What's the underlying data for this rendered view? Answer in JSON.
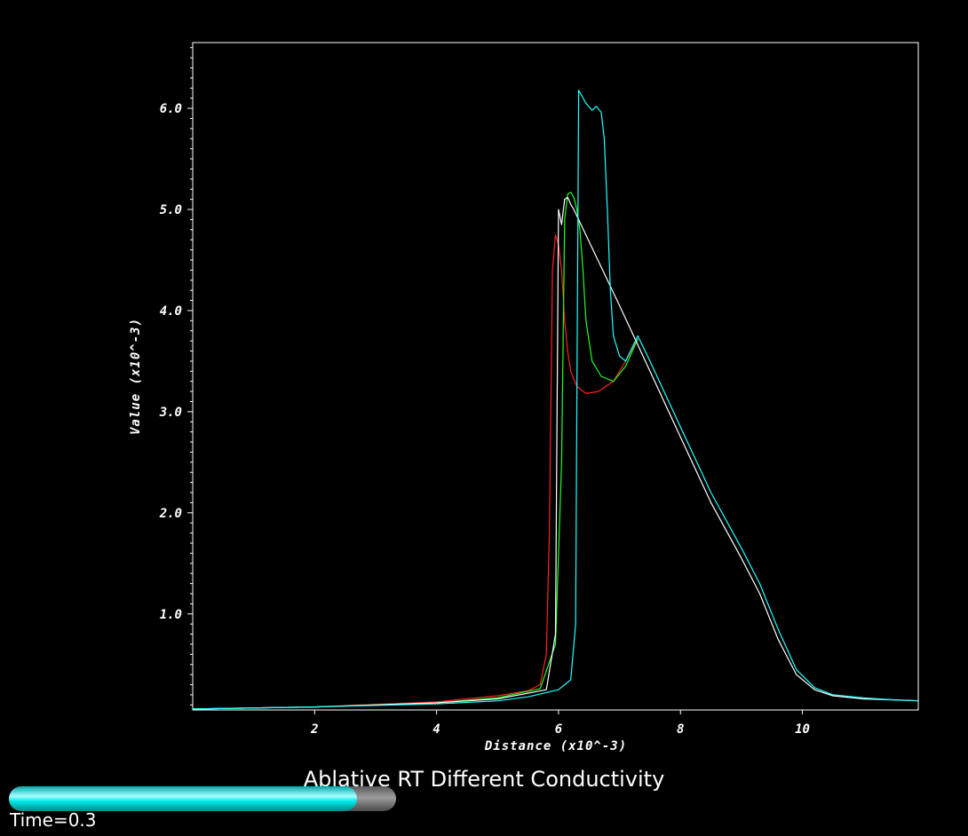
{
  "chart_data": {
    "type": "line",
    "title": "Ablative RT Different Conductivity",
    "xlabel": "Distance (x10^-3)",
    "ylabel": "Value (x10^-3)",
    "xlim": [
      0.0,
      11.9
    ],
    "ylim": [
      0.05,
      6.65
    ],
    "xticks": [
      2,
      4,
      6,
      8,
      10
    ],
    "xtick_labels": [
      "2",
      "4",
      "6",
      "8",
      "10"
    ],
    "yticks": [
      1.0,
      2.0,
      3.0,
      4.0,
      5.0,
      6.0
    ],
    "ytick_labels": [
      "1.0",
      "2.0",
      "3.0",
      "4.0",
      "5.0",
      "6.0"
    ],
    "grid": false,
    "series": [
      {
        "color": "#ff2020",
        "x": [
          0.0,
          2.0,
          4.0,
          5.0,
          5.5,
          5.7,
          5.8,
          5.85,
          5.9,
          5.95,
          6.0,
          6.05,
          6.1,
          6.15,
          6.2,
          6.3,
          6.45,
          6.65,
          6.9,
          7.1,
          7.3
        ],
        "y": [
          0.06,
          0.08,
          0.13,
          0.19,
          0.24,
          0.3,
          0.6,
          1.8,
          4.4,
          4.75,
          4.65,
          4.4,
          3.9,
          3.6,
          3.4,
          3.25,
          3.18,
          3.2,
          3.3,
          3.5,
          3.72
        ]
      },
      {
        "color": "#20ff20",
        "x": [
          0.0,
          2.0,
          4.0,
          5.0,
          5.7,
          5.95,
          6.05,
          6.1,
          6.15,
          6.2,
          6.25,
          6.3,
          6.35,
          6.4,
          6.45,
          6.55,
          6.7,
          6.9,
          7.1,
          7.3
        ],
        "y": [
          0.06,
          0.08,
          0.12,
          0.17,
          0.26,
          0.7,
          2.5,
          4.9,
          5.15,
          5.17,
          5.12,
          5.0,
          4.8,
          4.4,
          3.9,
          3.5,
          3.35,
          3.3,
          3.45,
          3.72
        ]
      },
      {
        "color": "#ffffff",
        "x": [
          0.0,
          2.0,
          4.0,
          5.0,
          5.8,
          5.95,
          6.0,
          6.05,
          6.1,
          6.15,
          6.2,
          6.25,
          7.0,
          7.5,
          8.0,
          8.5,
          9.0,
          9.3,
          9.6,
          9.9,
          10.2,
          10.5,
          11.0,
          11.5,
          11.9
        ],
        "y": [
          0.06,
          0.08,
          0.12,
          0.16,
          0.25,
          0.8,
          5.0,
          4.85,
          5.1,
          5.12,
          5.05,
          5.0,
          4.05,
          3.4,
          2.75,
          2.1,
          1.55,
          1.2,
          0.75,
          0.4,
          0.25,
          0.19,
          0.16,
          0.15,
          0.14
        ]
      },
      {
        "color": "#20ffff",
        "x": [
          0.0,
          2.0,
          4.0,
          5.0,
          5.5,
          6.0,
          6.2,
          6.28,
          6.3,
          6.33,
          6.36,
          6.45,
          6.55,
          6.62,
          6.7,
          6.75,
          6.8,
          6.85,
          6.9,
          7.0,
          7.1,
          7.3,
          7.5,
          8.0,
          8.5,
          9.0,
          9.3,
          9.6,
          9.9,
          10.2,
          10.5,
          11.0,
          11.5,
          11.9
        ],
        "y": [
          0.06,
          0.08,
          0.11,
          0.14,
          0.18,
          0.25,
          0.35,
          0.9,
          3.0,
          6.18,
          6.15,
          6.05,
          5.98,
          6.02,
          5.96,
          5.7,
          5.0,
          4.2,
          3.75,
          3.55,
          3.5,
          3.75,
          3.5,
          2.85,
          2.2,
          1.65,
          1.3,
          0.85,
          0.45,
          0.27,
          0.2,
          0.17,
          0.15,
          0.14
        ]
      }
    ]
  },
  "time_slider": {
    "label": "Time=0.3",
    "fraction": 0.9,
    "fill_color": "#00ffff"
  }
}
